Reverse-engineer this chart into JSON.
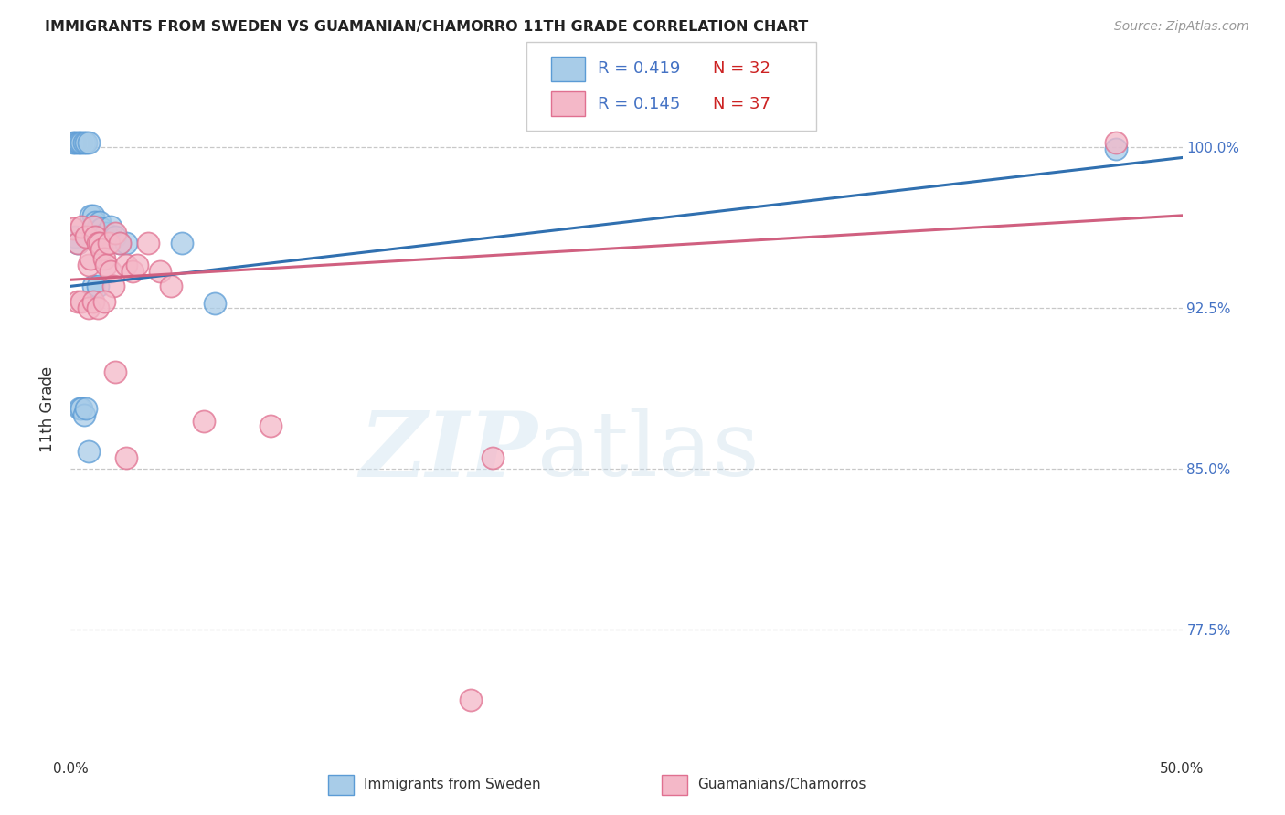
{
  "title": "IMMIGRANTS FROM SWEDEN VS GUAMANIAN/CHAMORRO 11TH GRADE CORRELATION CHART",
  "source": "Source: ZipAtlas.com",
  "ylabel": "11th Grade",
  "xmin": 0.0,
  "xmax": 0.5,
  "ymin": 0.715,
  "ymax": 1.04,
  "yticks": [
    0.775,
    0.85,
    0.925,
    1.0
  ],
  "ytick_labels": [
    "77.5%",
    "85.0%",
    "92.5%",
    "100.0%"
  ],
  "xticks": [
    0.0,
    0.1,
    0.2,
    0.3,
    0.4,
    0.5
  ],
  "xtick_labels": [
    "0.0%",
    "",
    "",
    "",
    "",
    "50.0%"
  ],
  "legend_r_blue": "R = 0.419",
  "legend_n_blue": "N = 32",
  "legend_r_pink": "R = 0.145",
  "legend_n_pink": "N = 37",
  "legend_label_blue": "Immigrants from Sweden",
  "legend_label_pink": "Guamanians/Chamorros",
  "blue_color": "#a8cce8",
  "pink_color": "#f4b8c8",
  "blue_edge_color": "#5b9bd5",
  "pink_edge_color": "#e07090",
  "blue_line_color": "#3070b0",
  "pink_line_color": "#d06080",
  "text_color_blue": "#4472c4",
  "text_color_red": "#c0392b",
  "blue_x": [
    0.001,
    0.002,
    0.003,
    0.004,
    0.005,
    0.006,
    0.007,
    0.008,
    0.009,
    0.01,
    0.011,
    0.012,
    0.013,
    0.014,
    0.015,
    0.016,
    0.018,
    0.02,
    0.022,
    0.025,
    0.002,
    0.003,
    0.004,
    0.005,
    0.006,
    0.007,
    0.008,
    0.01,
    0.012,
    0.05,
    0.065,
    0.47
  ],
  "blue_y": [
    1.002,
    1.002,
    1.002,
    1.002,
    1.002,
    1.002,
    1.002,
    1.002,
    0.968,
    0.968,
    0.965,
    0.963,
    0.965,
    0.962,
    0.958,
    0.96,
    0.963,
    0.958,
    0.955,
    0.955,
    0.958,
    0.955,
    0.878,
    0.878,
    0.875,
    0.878,
    0.858,
    0.935,
    0.935,
    0.955,
    0.927,
    0.999
  ],
  "pink_x": [
    0.001,
    0.003,
    0.005,
    0.007,
    0.008,
    0.009,
    0.01,
    0.011,
    0.012,
    0.013,
    0.014,
    0.015,
    0.016,
    0.017,
    0.018,
    0.019,
    0.02,
    0.022,
    0.025,
    0.028,
    0.03,
    0.035,
    0.04,
    0.045,
    0.003,
    0.005,
    0.008,
    0.01,
    0.012,
    0.015,
    0.02,
    0.025,
    0.06,
    0.09,
    0.18,
    0.19,
    0.47
  ],
  "pink_y": [
    0.962,
    0.955,
    0.963,
    0.958,
    0.945,
    0.948,
    0.963,
    0.958,
    0.955,
    0.955,
    0.952,
    0.948,
    0.945,
    0.955,
    0.942,
    0.935,
    0.96,
    0.955,
    0.945,
    0.942,
    0.945,
    0.955,
    0.942,
    0.935,
    0.928,
    0.928,
    0.925,
    0.928,
    0.925,
    0.928,
    0.895,
    0.855,
    0.872,
    0.87,
    0.742,
    0.855,
    1.002
  ],
  "watermark_zip": "ZIP",
  "watermark_atlas": "atlas",
  "background_color": "#ffffff",
  "grid_color": "#c8c8c8"
}
